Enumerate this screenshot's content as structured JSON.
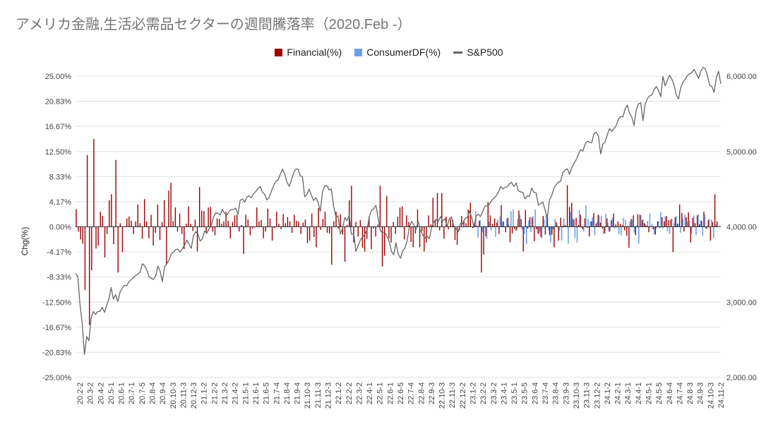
{
  "chart_data": {
    "type": "bar",
    "title": "アメリカ金融,生活必需品セクターの週間騰落率（2020.Feb -）",
    "ylabel": "Chg(%)",
    "ylim": [
      -25,
      25
    ],
    "y2lim": [
      2000,
      6000
    ],
    "legend_position": "top",
    "gridlines": true,
    "y_ticks": [
      "25.00%",
      "20.83%",
      "16.67%",
      "12.50%",
      "8.33%",
      "4.17%",
      "0.00%",
      "-4.17%",
      "-8.33%",
      "-12.50%",
      "-16.67%",
      "-20.83%",
      "-25.00%"
    ],
    "y2_ticks": [
      "6,000.00",
      "5,000.00",
      "4,000.00",
      "3,000.00",
      "2,000.00"
    ],
    "x_tick_labels": [
      "20.2-2",
      "20.3-2",
      "20.4-2",
      "20.5-1",
      "20.6-1",
      "20.7-1",
      "20.7-5",
      "20.8-4",
      "20.9-4",
      "20.10-3",
      "20.11-3",
      "20.12-3",
      "21.1-2",
      "21.2-2",
      "21.3-2",
      "21.4-2",
      "21.5-1",
      "21.6-1",
      "21.6-5",
      "21.7-4",
      "21.8-4",
      "21.9-4",
      "21.10-3",
      "21.11-3",
      "21.12-3",
      "22.1-2",
      "22.2-2",
      "22.3-2",
      "22.4-1",
      "22.5-1",
      "22.6-1",
      "22.6-5",
      "22.7-4",
      "22.8-4",
      "22.9-3",
      "22.10-3",
      "22.11-3",
      "22.12-2",
      "23.1-2",
      "23.2-2",
      "23.3-2",
      "23.4-1",
      "23.5-1",
      "23.5-5",
      "23.6-4",
      "23.7-4",
      "23.8-4",
      "23.9-3",
      "23.10-3",
      "23.11-3",
      "23.12-2",
      "24.1-2",
      "24.2-1",
      "24.3-1",
      "24.4-1",
      "24.5-1",
      "24.5-5",
      "24.6-4",
      "24.7-4",
      "24.8-3",
      "24.9-3",
      "24.10-3",
      "24.11-2"
    ],
    "series": [
      {
        "name": "Financial(%)",
        "axis": "left",
        "color": "#990000",
        "values": [
          2.9,
          -0.8,
          -2.1,
          -2.8,
          -10.5,
          11.9,
          -16.3,
          -7.2,
          14.6,
          -3.6,
          -3.1,
          2.5,
          1.8,
          -5.1,
          -1.2,
          4.4,
          5.4,
          -2.9,
          11.1,
          -7.6,
          0.6,
          -4.2,
          0.1,
          1.4,
          1.7,
          1.0,
          -1.2,
          0.9,
          3.7,
          0.6,
          -2.0,
          4.6,
          0.9,
          -1.9,
          2.0,
          -3.1,
          -1.0,
          3.7,
          -2.2,
          0.8,
          4.4,
          -6.3,
          6.0,
          7.3,
          0.9,
          3.2,
          -0.8,
          2.2,
          -1.2,
          -3.7,
          0.5,
          3.4,
          0.5,
          -0.7,
          1.2,
          -4.1,
          6.6,
          2.7,
          2.6,
          -1.0,
          3.2,
          3.3,
          -0.8,
          -1.4,
          1.4,
          1.3,
          0.5,
          0.9,
          2.5,
          1.0,
          -1.9,
          0.8,
          1.9,
          2.0,
          -0.8,
          0.3,
          -4.5,
          2.0,
          1.2,
          -1.4,
          -0.3,
          -0.1,
          3.2,
          0.9,
          1.1,
          -1.9,
          -0.8,
          3.0,
          1.4,
          -2.3,
          -0.2,
          2.5,
          0.5,
          -0.4,
          2.1,
          0.6,
          1.6,
          0.9,
          -1.0,
          2.0,
          1.0,
          0.9,
          -1.2,
          0.7,
          1.2,
          -2.7,
          -2.3,
          2.2,
          -1.7,
          -3.4,
          3.1,
          -0.5,
          1.3,
          2.5,
          -1.0,
          -1.1,
          -6.3,
          0.9,
          2.5,
          -0.3,
          2.1,
          -1.3,
          -5.8,
          0.3,
          4.4,
          6.8,
          -2.6,
          0.8,
          -1.6,
          1.1,
          -3.5,
          -4.1,
          -2.0,
          1.7,
          -3.7,
          -0.3,
          -1.6,
          0.4,
          6.8,
          -6.6,
          -4.8,
          5.1,
          -1.9,
          -2.6,
          0.8,
          -1.2,
          1.7,
          3.2,
          3.4,
          -2.1,
          1.9,
          0.8,
          -2.5,
          -3.4,
          -1.1,
          2.9,
          -3.4,
          -0.7,
          -4.1,
          -2.6,
          1.9,
          0.4,
          4.8,
          1.2,
          5.6,
          -0.6,
          5.6,
          -2.0,
          1.7,
          -0.4,
          1.3,
          1.1,
          -2.2,
          -3.0,
          -0.6,
          1.8,
          1.1,
          0.6,
          2.9,
          4.0,
          -0.2,
          0.6,
          0.2,
          1.0,
          -7.6,
          -4.6,
          -1.6,
          4.1,
          1.9,
          0.5,
          1.4,
          0.7,
          -1.2,
          3.6,
          0.9,
          -0.9,
          1.5,
          -2.6,
          -1.1,
          -0.3,
          -0.6,
          2.7,
          1.3,
          -4.1,
          2.8,
          -0.3,
          1.6,
          1.5,
          -2.4,
          -0.4,
          -1.2,
          -1.7,
          1.8,
          -1.3,
          1.6,
          -1.4,
          -1.3,
          -3.4,
          0.8,
          -2.3,
          1.5,
          0.2,
          0.3,
          6.9,
          3.3,
          4.0,
          1.2,
          1.5,
          0.3,
          2.0,
          -0.4,
          1.4,
          -0.2,
          -1.6,
          0.9,
          2.3,
          0.5,
          2.0,
          0.7,
          -0.3,
          -1.1,
          1.4,
          -0.8,
          1.1,
          2.2,
          0.4,
          0.9,
          0.5,
          0.3,
          -0.6,
          -1.5,
          -3.5,
          1.3,
          1.9,
          -1.4,
          2.1,
          2.0,
          1.1,
          0.6,
          0.2,
          -0.9,
          0.1,
          -0.4,
          -1.3,
          0.9,
          -0.2,
          1.6,
          0.9,
          1.8,
          1.1,
          1.2,
          -4.2,
          1.6,
          0.5,
          3.7,
          2.3,
          -0.8,
          1.6,
          2.4,
          -2.6,
          1.5,
          0.6,
          1.9,
          0.4,
          1.0,
          2.5,
          -0.3,
          1.1,
          -2.3,
          0.8,
          5.4,
          0.9,
          0.1
        ]
      },
      {
        "name": "ConsumerDF(%)",
        "axis": "left",
        "color": "#6d9eeb",
        "values": [
          0,
          0,
          0,
          0,
          0,
          0,
          0,
          0,
          0,
          0,
          0,
          0,
          0,
          0,
          0,
          0,
          0,
          0,
          0,
          0,
          0,
          0,
          0,
          0,
          0,
          0,
          0,
          0,
          0,
          0,
          0,
          0,
          0,
          0,
          0,
          0,
          0,
          0,
          0,
          0,
          0,
          0,
          0,
          0,
          0,
          0,
          0,
          0,
          0,
          0,
          0,
          0,
          0,
          0,
          0,
          0,
          0,
          0,
          0,
          0,
          0,
          0,
          0,
          0,
          0,
          0,
          0,
          0,
          0,
          0,
          0,
          0,
          0,
          0,
          0,
          0,
          0,
          0,
          0,
          0,
          0,
          0,
          0,
          0,
          0,
          0,
          0,
          0,
          0,
          0,
          0,
          0,
          0,
          0,
          0,
          0,
          0,
          0,
          0,
          0,
          0,
          0,
          0,
          0,
          0,
          0,
          0,
          0,
          0,
          0,
          0,
          0,
          0,
          0,
          0,
          0,
          0,
          0,
          0,
          0,
          0,
          0,
          0,
          0,
          0,
          0,
          0,
          0,
          0,
          0,
          0,
          0,
          0,
          0,
          0,
          0,
          0,
          0,
          0,
          0,
          0,
          0,
          0,
          0,
          0,
          0,
          0,
          0,
          0,
          0,
          0,
          0,
          0,
          0,
          0,
          0,
          0,
          0,
          0,
          0,
          0,
          0,
          0,
          0,
          0,
          0,
          0,
          0,
          0,
          0,
          0,
          0,
          0,
          0,
          0,
          0,
          0,
          0,
          0,
          0,
          -0.2,
          2.6,
          -1.8,
          1.1,
          -0.9,
          0.2,
          -2.0,
          0.8,
          -0.6,
          0.2,
          -1.7,
          1.2,
          1.7,
          0.8,
          0.1,
          1.3,
          0.4,
          2.6,
          2.9,
          -0.6,
          1.3,
          2.0,
          -0.5,
          -1.2,
          -2.9,
          1.1,
          -0.9,
          1.8,
          2.9,
          -1.1,
          -0.8,
          -1.9,
          1.2,
          2.1,
          -0.6,
          -2.6,
          -0.5,
          1.2,
          0.4,
          -0.7,
          -2.3,
          1.4,
          0.1,
          -2.8,
          2.5,
          1.4,
          -1.9,
          -2.6,
          2.8,
          -0.2,
          -0.8,
          3.6,
          1.3,
          0.9,
          1.6,
          -1.4,
          0.8,
          1.9,
          1.8,
          -1.2,
          2.2,
          0.6,
          -0.7,
          1.5,
          -0.3,
          0.1,
          -1.2,
          -1.4,
          1.5,
          1.2,
          0.2,
          0.9,
          1.2,
          -1.0,
          0.2,
          -2.8,
          1.9,
          1.2,
          0.4,
          1.0,
          2.2,
          0.5,
          -1.2,
          -0.3,
          0.9,
          2.4,
          -0.3,
          1.7,
          -0.8,
          -1.2,
          1.4,
          0.6,
          1.8,
          0.5,
          -1.0,
          1.3,
          2.0,
          0.9,
          1.0,
          -1.2,
          1.9,
          -1.4,
          2.1,
          1.1,
          -1.5,
          2.0,
          -0.4,
          1.3,
          1.2,
          -1.9,
          0.4
        ]
      },
      {
        "name": "S&P500",
        "type": "line",
        "axis": "right",
        "color": "#666666",
        "values": [
          3380,
          3340,
          2970,
          2711,
          2304,
          2541,
          2488,
          2789,
          2875,
          2837,
          2874,
          2878,
          2930,
          2864,
          2955,
          3044,
          3193,
          3041,
          3098,
          3009,
          3130,
          3185,
          3224,
          3216,
          3271,
          3295,
          3327,
          3351,
          3373,
          3397,
          3509,
          3484,
          3427,
          3340,
          3319,
          3298,
          3348,
          3477,
          3411,
          3270,
          3465,
          3509,
          3557,
          3638,
          3666,
          3699,
          3702,
          3663,
          3709,
          3756,
          3824,
          3768,
          3714,
          3887,
          3934,
          3906,
          3811,
          3841,
          3943,
          3913,
          3974,
          4019,
          4128,
          4185,
          4180,
          4155,
          4232,
          4173,
          4156,
          4204,
          4230,
          4229,
          4247,
          4166,
          4352,
          4370,
          4327,
          4395,
          4411,
          4387,
          4437,
          4468,
          4509,
          4535,
          4459,
          4432,
          4357,
          4391,
          4471,
          4544,
          4605,
          4620,
          4697,
          4766,
          4702,
          4595,
          4538,
          4620,
          4712,
          4766,
          4766,
          4677,
          4662,
          4398,
          4432,
          4500,
          4418,
          4349,
          4385,
          4328,
          4204,
          4463,
          4543,
          4546,
          4488,
          4501,
          4271,
          4131,
          4146,
          3904,
          3979,
          4123,
          4081,
          4158,
          3900,
          3911,
          3674,
          3750,
          3825,
          3863,
          3899,
          3962,
          4130,
          4218,
          4237,
          4284,
          4120,
          3945,
          3924,
          3924,
          3873,
          3801,
          3675,
          3628,
          3789,
          3639,
          3583,
          3677,
          3717,
          3808,
          3993,
          4071,
          4026,
          3964,
          4071,
          3958,
          3893,
          3852,
          3875,
          3840,
          3990,
          4064,
          4096,
          4071,
          4136,
          4074,
          4110,
          4004,
          4109,
          4131,
          4006,
          3973,
          3933,
          4044,
          4041,
          4110,
          4124,
          4207,
          4129,
          4000,
          4138,
          4169,
          4136,
          4205,
          4273,
          4282,
          4299,
          4348,
          4381,
          4410,
          4453,
          4536,
          4505,
          4522,
          4533,
          4570,
          4589,
          4536,
          4582,
          4478,
          4464,
          4457,
          4370,
          4410,
          4405,
          4515,
          4457,
          4450,
          4288,
          4308,
          4328,
          4224,
          4117,
          4358,
          4415,
          4514,
          4559,
          4594,
          4604,
          4719,
          4754,
          4770,
          4697,
          4783,
          4840,
          4891,
          4958,
          5026,
          5005,
          5096,
          5137,
          5124,
          5117,
          5241,
          5254,
          5204,
          4967,
          5099,
          5127,
          5223,
          5303,
          5267,
          5304,
          5346,
          5432,
          5464,
          5460,
          5567,
          5615,
          5505,
          5459,
          5344,
          5554,
          5634,
          5648,
          5408,
          5626,
          5702,
          5738,
          5751,
          5815,
          5864,
          5808,
          5728,
          5995,
          5870,
          5950,
          6012,
          5960,
          5880,
          5750,
          5700,
          5850,
          5921,
          5960,
          6010,
          6030,
          6050,
          6090,
          6032,
          5970,
          6065,
          6118,
          6100,
          6005,
          5880,
          5861,
          5785,
          5983,
          6065,
          5900
        ]
      }
    ]
  }
}
